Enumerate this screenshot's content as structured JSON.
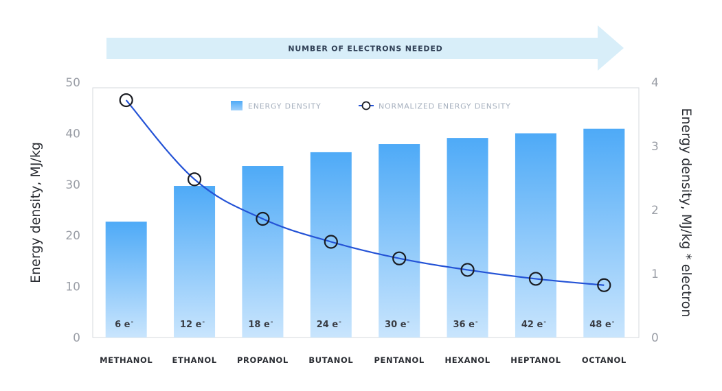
{
  "chart_data": {
    "type": "bar",
    "categories": [
      "METHANOL",
      "ETHANOL",
      "PROPANOL",
      "BUTANOL",
      "PENTANOL",
      "HEXANOL",
      "HEPTANOL",
      "OCTANOL"
    ],
    "bar_labels": [
      "6 e",
      "12 e",
      "18 e",
      "24 e",
      "30 e",
      "36 e",
      "42 e",
      "48 e"
    ],
    "bar_label_superscript": "-",
    "series": [
      {
        "name": "ENERGY DENSITY",
        "type": "bar",
        "axis": "left",
        "values": [
          22.7,
          29.7,
          33.6,
          36.3,
          37.9,
          39.1,
          40.0,
          40.9
        ]
      },
      {
        "name": "NORMALIZED ENERGY DENSITY",
        "type": "line",
        "axis": "right",
        "values": [
          3.72,
          2.48,
          1.86,
          1.5,
          1.24,
          1.06,
          0.92,
          0.82
        ]
      }
    ],
    "ylabel": "Energy density, MJ/kg",
    "y2label": "Energy density, MJ/kg * electron",
    "ylim": [
      0,
      50
    ],
    "yticks": [
      0,
      10,
      20,
      30,
      40,
      50
    ],
    "y2lim": [
      0,
      4
    ],
    "y2ticks": [
      0,
      1,
      2,
      3,
      4
    ],
    "arrow_label": "NUMBER OF ELECTRONS NEEDED",
    "legend_position": "top-center",
    "grid": false,
    "colors": {
      "bar_top": "#4eaaf7",
      "bar_bottom": "#c9e5fd",
      "line": "#2453d6",
      "marker_stroke": "#1a1c22",
      "arrow": "#d8eef9",
      "frame": "#d6d8dc"
    }
  }
}
